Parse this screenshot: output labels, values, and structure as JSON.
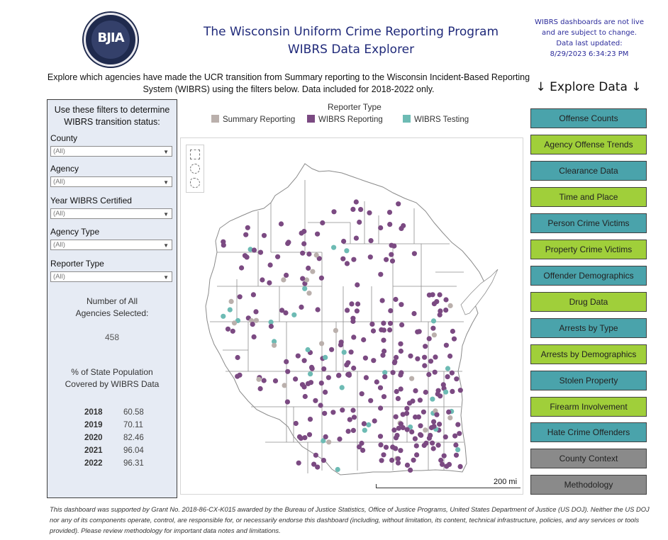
{
  "header": {
    "logo_text": "BJIA",
    "title_line1": "The Wisconsin Uniform Crime Reporting Program",
    "title_line2": "WIBRS Data Explorer",
    "notice_line1": "WIBRS dashboards are not live",
    "notice_line2": "and are subject to change.",
    "notice_line3": "Data last updated:",
    "notice_line4": "8/29/2023 6:34:23 PM"
  },
  "intro_text": "Explore which agencies have made the UCR transition from Summary reporting to the Wisconsin Incident-Based Reporting System (WIBRS) using the filters below. Data included for 2018-2022 only.",
  "explore_heading": "↓ Explore Data ↓",
  "filters": {
    "heading": "Use these filters to determine WIBRS transition status:",
    "county_label": "County",
    "county_value": "(All)",
    "agency_label": "Agency",
    "agency_value": "(All)",
    "year_label": "Year WIBRS Certified",
    "year_value": "(All)",
    "agency_type_label": "Agency Type",
    "agency_type_value": "(All)",
    "reporter_type_label": "Reporter Type",
    "reporter_type_value": "(All)",
    "count_label_1": "Number of All",
    "count_label_2": "Agencies Selected:",
    "count_value": "458",
    "pct_label_1": "% of State Population",
    "pct_label_2": "Covered by WIBRS Data",
    "coverage": [
      {
        "year": "2018",
        "pct": "60.58"
      },
      {
        "year": "2019",
        "pct": "70.11"
      },
      {
        "year": "2020",
        "pct": "82.46"
      },
      {
        "year": "2021",
        "pct": "96.04"
      },
      {
        "year": "2022",
        "pct": "96.31"
      }
    ]
  },
  "legend": {
    "title": "Reporter Type",
    "items": [
      {
        "label": "Summary Reporting",
        "color": "#bab0ac"
      },
      {
        "label": "WIBRS Reporting",
        "color": "#7b4a82"
      },
      {
        "label": "WIBRS Testing",
        "color": "#6dbbb4"
      }
    ]
  },
  "map": {
    "scale_label": "200 mi",
    "colors": {
      "summary": "#bab0ac",
      "wibrs": "#7b4a82",
      "testing": "#6dbbb4",
      "county_line": "#8f8f8f"
    }
  },
  "nav": [
    {
      "label": "Offense Counts",
      "color": "#4aa3ab"
    },
    {
      "label": "Agency Offense Trends",
      "color": "#a0cf3a"
    },
    {
      "label": "Clearance Data",
      "color": "#4aa3ab"
    },
    {
      "label": "Time and Place",
      "color": "#a0cf3a"
    },
    {
      "label": "Person Crime Victims",
      "color": "#4aa3ab"
    },
    {
      "label": "Property Crime Victims",
      "color": "#a0cf3a"
    },
    {
      "label": "Offender Demographics",
      "color": "#4aa3ab"
    },
    {
      "label": "Drug Data",
      "color": "#a0cf3a"
    },
    {
      "label": "Arrests by Type",
      "color": "#4aa3ab"
    },
    {
      "label": "Arrests by Demographics",
      "color": "#a0cf3a"
    },
    {
      "label": "Stolen Property",
      "color": "#4aa3ab"
    },
    {
      "label": "Firearm Involvement",
      "color": "#a0cf3a"
    },
    {
      "label": "Hate Crime Offenders",
      "color": "#4aa3ab"
    },
    {
      "label": "County Context",
      "color": "#8a8a8a"
    },
    {
      "label": "Methodology",
      "color": "#8a8a8a"
    }
  ],
  "footer_text": "This dashboard was supported by Grant No. 2018-86-CX-K015 awarded by the Bureau of Justice Statistics, Office of Justice Programs, United States Department of Justice (US DOJ). Neither the US DOJ nor any of its components operate, control, are responsible for, or necessarily endorse this dashboard (including, without limitation, its content, technical infrastructure, policies, and any services or tools provided). Please review methodology for important data notes and limitations."
}
